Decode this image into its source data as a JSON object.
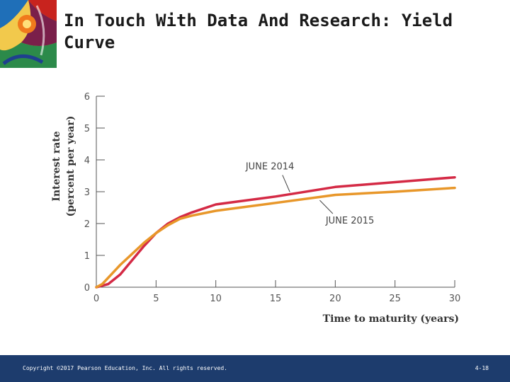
{
  "slide": {
    "title": "In Touch With Data And Research: Yield Curve",
    "footer": {
      "copyright": "Copyright ©2017 Pearson Education, Inc. All rights reserved.",
      "page": "4-18"
    },
    "colors": {
      "footer_bg": "#1d3c6d",
      "june_2014": "#d42a45",
      "june_2015": "#e8972a"
    }
  },
  "chart_data": {
    "type": "line",
    "title": "",
    "xlabel": "Time to maturity (years)",
    "ylabel": "Interest rate",
    "ylabel_sub": "(percent per year)",
    "xlim": [
      0,
      30
    ],
    "ylim": [
      0,
      6
    ],
    "xticks": [
      0,
      5,
      10,
      15,
      20,
      25,
      30
    ],
    "yticks": [
      0,
      1,
      2,
      3,
      4,
      5,
      6
    ],
    "grid": false,
    "series": [
      {
        "name": "JUNE 2014",
        "color": "#d42a45",
        "x": [
          0,
          0.5,
          1,
          2,
          3,
          4,
          5,
          6,
          7,
          8,
          10,
          12,
          15,
          20,
          25,
          30
        ],
        "y": [
          0,
          0.05,
          0.1,
          0.4,
          0.85,
          1.3,
          1.7,
          2.0,
          2.2,
          2.35,
          2.6,
          2.7,
          2.85,
          3.15,
          3.3,
          3.45
        ]
      },
      {
        "name": "JUNE 2015",
        "color": "#e8972a",
        "x": [
          0,
          0.5,
          1,
          2,
          3,
          4,
          5,
          6,
          7,
          8,
          10,
          12,
          15,
          20,
          25,
          30
        ],
        "y": [
          0,
          0.1,
          0.3,
          0.7,
          1.05,
          1.4,
          1.7,
          1.95,
          2.15,
          2.25,
          2.4,
          2.5,
          2.65,
          2.9,
          3.0,
          3.12
        ]
      }
    ]
  }
}
